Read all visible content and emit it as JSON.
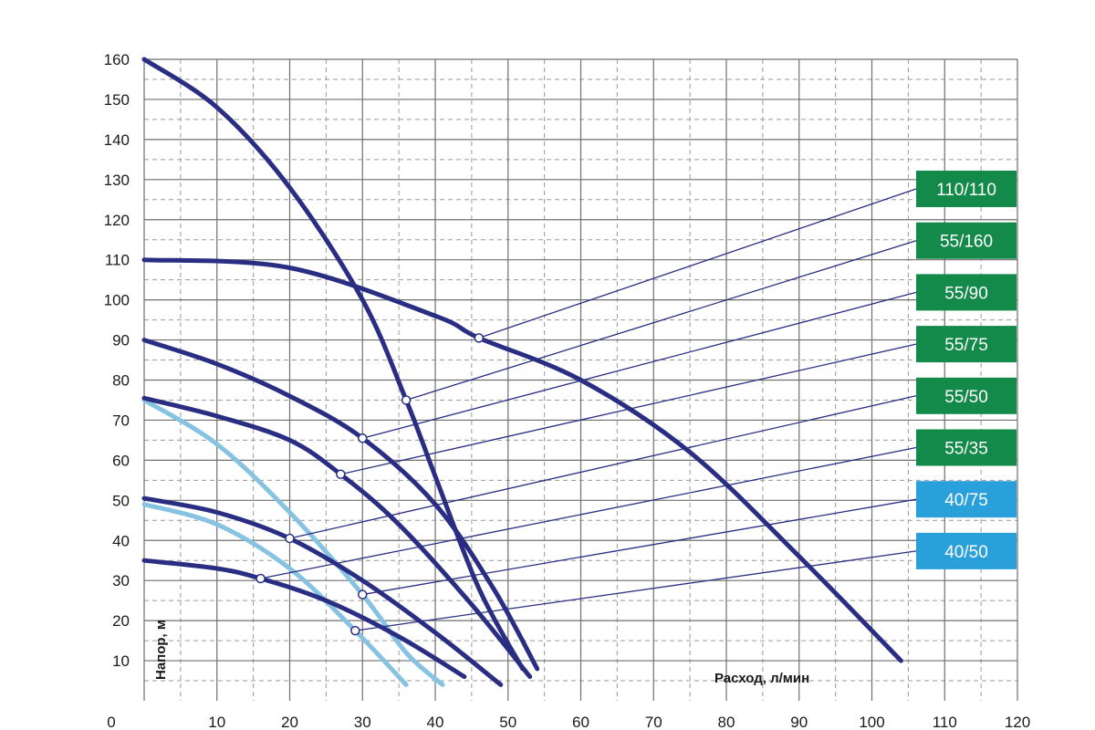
{
  "chart_data": {
    "type": "line",
    "xlabel": "Расход, л/мин",
    "ylabel": "Напор, м",
    "xlim": [
      0,
      120
    ],
    "ylim": [
      0,
      160
    ],
    "x_ticks": [
      0,
      10,
      20,
      30,
      40,
      50,
      60,
      70,
      80,
      90,
      100,
      110,
      120
    ],
    "y_ticks": [
      10,
      20,
      30,
      40,
      50,
      60,
      70,
      80,
      90,
      100,
      110,
      120,
      130,
      140,
      150,
      160
    ],
    "y_zero_label": "0",
    "grid": true,
    "series": [
      {
        "name": "110/110",
        "color": "#2a2e83",
        "label_bg": "#138a4a",
        "marker": [
          46,
          90.5
        ],
        "points": [
          [
            0,
            110
          ],
          [
            20,
            108
          ],
          [
            40,
            96
          ],
          [
            46,
            90.5
          ],
          [
            60,
            80
          ],
          [
            75,
            62
          ],
          [
            90,
            36
          ],
          [
            104,
            10
          ]
        ]
      },
      {
        "name": "55/160",
        "color": "#2a2e83",
        "label_bg": "#138a4a",
        "marker": [
          36,
          75
        ],
        "points": [
          [
            0,
            160
          ],
          [
            10,
            148
          ],
          [
            20,
            128
          ],
          [
            30,
            100
          ],
          [
            36,
            75
          ],
          [
            40,
            56
          ],
          [
            46,
            28
          ],
          [
            52,
            8
          ]
        ]
      },
      {
        "name": "55/90",
        "color": "#2a2e83",
        "label_bg": "#138a4a",
        "marker": [
          30,
          65.5
        ],
        "points": [
          [
            0,
            90
          ],
          [
            10,
            84
          ],
          [
            20,
            76
          ],
          [
            30,
            65.5
          ],
          [
            40,
            49
          ],
          [
            48,
            28
          ],
          [
            54,
            8
          ]
        ]
      },
      {
        "name": "55/75",
        "color": "#2a2e83",
        "label_bg": "#138a4a",
        "marker": [
          27,
          56.5
        ],
        "points": [
          [
            0,
            75.5
          ],
          [
            10,
            71
          ],
          [
            20,
            65
          ],
          [
            27,
            56.5
          ],
          [
            35,
            44
          ],
          [
            45,
            24
          ],
          [
            53,
            6
          ]
        ]
      },
      {
        "name": "55/50",
        "color": "#2a2e83",
        "label_bg": "#138a4a",
        "marker": [
          20,
          40.5
        ],
        "points": [
          [
            0,
            50.5
          ],
          [
            10,
            47
          ],
          [
            20,
            40.5
          ],
          [
            30,
            30
          ],
          [
            40,
            17
          ],
          [
            49,
            4
          ]
        ]
      },
      {
        "name": "55/35",
        "color": "#2a2e83",
        "label_bg": "#138a4a",
        "marker": [
          16,
          30.5
        ],
        "points": [
          [
            0,
            35
          ],
          [
            10,
            33
          ],
          [
            16,
            30.5
          ],
          [
            25,
            25
          ],
          [
            35,
            16
          ],
          [
            44,
            6
          ]
        ]
      },
      {
        "name": "40/75",
        "color": "#86c3e2",
        "label_bg": "#2aa0db",
        "marker": [
          30,
          26.5
        ],
        "points": [
          [
            0,
            75
          ],
          [
            10,
            64
          ],
          [
            20,
            47
          ],
          [
            30,
            26.5
          ],
          [
            36,
            12
          ],
          [
            41,
            4
          ]
        ]
      },
      {
        "name": "40/50",
        "color": "#86c3e2",
        "label_bg": "#2aa0db",
        "marker": [
          29,
          17.5
        ],
        "points": [
          [
            0,
            49
          ],
          [
            10,
            44
          ],
          [
            20,
            33
          ],
          [
            29,
            17.5
          ],
          [
            36,
            4
          ]
        ]
      }
    ]
  }
}
